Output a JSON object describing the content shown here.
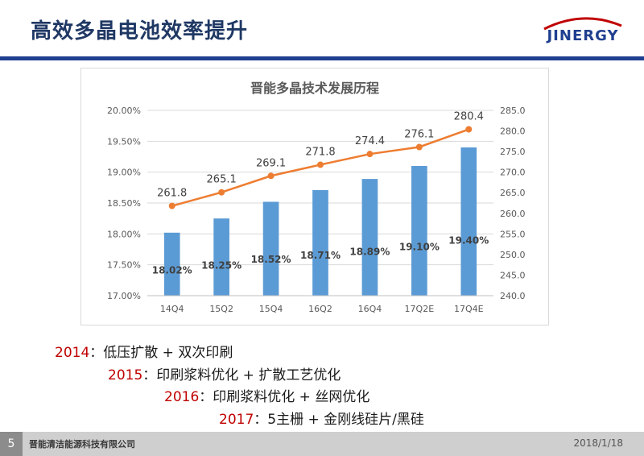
{
  "slide": {
    "title": "高效多晶电池效率提升",
    "logo_text": "JINERGY",
    "page_number": "5",
    "company": "晋能清洁能源科技有限公司",
    "date": "2018/1/18"
  },
  "colors": {
    "bar": "#5b9bd5",
    "line": "#ed7d31",
    "title": "#1f3864",
    "accent_bar": "#1f3f8f",
    "year": "#c00000"
  },
  "chart_data": {
    "type": "bar+line",
    "title": "晋能多晶技术发展历程",
    "categories": [
      "14Q4",
      "15Q2",
      "15Q4",
      "16Q2",
      "16Q4",
      "17Q2E",
      "17Q4E"
    ],
    "series": [
      {
        "type": "bar",
        "axis": "left",
        "values": [
          18.02,
          18.25,
          18.52,
          18.71,
          18.89,
          19.1,
          19.4
        ],
        "labels": [
          "18.02%",
          "18.25%",
          "18.52%",
          "18.71%",
          "18.89%",
          "19.10%",
          "19.40%"
        ]
      },
      {
        "type": "line",
        "axis": "right",
        "values": [
          261.8,
          265.1,
          269.1,
          271.8,
          274.4,
          276.1,
          280.4
        ],
        "labels": [
          "261.8",
          "265.1",
          "269.1",
          "271.8",
          "274.4",
          "276.1",
          "280.4"
        ]
      }
    ],
    "y_left": {
      "min": 17.0,
      "max": 20.0,
      "step": 0.5,
      "ticks": [
        "17.00%",
        "17.50%",
        "18.00%",
        "18.50%",
        "19.00%",
        "19.50%",
        "20.00%"
      ]
    },
    "y_right": {
      "min": 240.0,
      "max": 285.0,
      "step": 5,
      "ticks": [
        "240.0",
        "245.0",
        "250.0",
        "255.0",
        "260.0",
        "265.0",
        "270.0",
        "275.0",
        "280.0",
        "285.0"
      ]
    },
    "grid": true,
    "legend": "none"
  },
  "milestones": [
    {
      "year": "2014",
      "text": "：低压扩散 + 双次印刷"
    },
    {
      "year": "2015",
      "text": "：印刷浆料优化 + 扩散工艺优化"
    },
    {
      "year": "2016",
      "text": "：印刷浆料优化 + 丝网优化"
    },
    {
      "year": "2017",
      "text": "：5主栅 + 金刚线硅片/黑硅"
    }
  ]
}
